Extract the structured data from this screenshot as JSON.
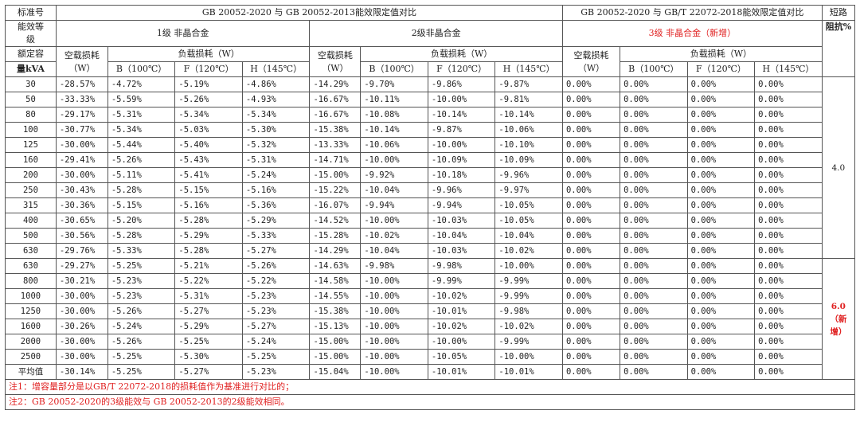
{
  "header": {
    "std_label": "标准号",
    "cmp_left": "GB 20052-2020 与 GB 20052-2013能效限定值对比",
    "cmp_right": "GB 20052-2020 与 GB/T 22072-2018能效限定值对比",
    "short_circuit_1": "短路",
    "short_circuit_2": "阻抗%",
    "grade_label_1": "能效等",
    "grade_label_2": "级",
    "grade1": "1级 非晶合金",
    "grade2": "2级非晶合金",
    "grade3": "3级 非晶合金（新增）",
    "rated_cap_1": "额定容",
    "rated_cap_2": "量kVA",
    "noload_1": "空载损耗",
    "noload_2": "（W）",
    "load_loss": "负载损耗（W）",
    "col_b": "B（100℃）",
    "col_f": "F（120℃）",
    "col_h": "H（145℃）"
  },
  "rows": [
    {
      "cap": "30",
      "g1": [
        "-28.57%",
        "-4.72%",
        "-5.19%",
        "-4.86%"
      ],
      "g2": [
        "-14.29%",
        "-9.70%",
        "-9.86%",
        "-9.87%"
      ],
      "g3": [
        "0.00%",
        "0.00%",
        "0.00%",
        "0.00%"
      ]
    },
    {
      "cap": "50",
      "g1": [
        "-33.33%",
        "-5.59%",
        "-5.26%",
        "-4.93%"
      ],
      "g2": [
        "-16.67%",
        "-10.11%",
        "-10.00%",
        "-9.81%"
      ],
      "g3": [
        "0.00%",
        "0.00%",
        "0.00%",
        "0.00%"
      ]
    },
    {
      "cap": "80",
      "g1": [
        "-29.17%",
        "-5.31%",
        "-5.34%",
        "-5.34%"
      ],
      "g2": [
        "-16.67%",
        "-10.08%",
        "-10.14%",
        "-10.14%"
      ],
      "g3": [
        "0.00%",
        "0.00%",
        "0.00%",
        "0.00%"
      ]
    },
    {
      "cap": "100",
      "g1": [
        "-30.77%",
        "-5.34%",
        "-5.03%",
        "-5.30%"
      ],
      "g2": [
        "-15.38%",
        "-10.14%",
        "-9.87%",
        "-10.06%"
      ],
      "g3": [
        "0.00%",
        "0.00%",
        "0.00%",
        "0.00%"
      ]
    },
    {
      "cap": "125",
      "g1": [
        "-30.00%",
        "-5.44%",
        "-5.40%",
        "-5.32%"
      ],
      "g2": [
        "-13.33%",
        "-10.06%",
        "-10.00%",
        "-10.10%"
      ],
      "g3": [
        "0.00%",
        "0.00%",
        "0.00%",
        "0.00%"
      ]
    },
    {
      "cap": "160",
      "g1": [
        "-29.41%",
        "-5.26%",
        "-5.43%",
        "-5.31%"
      ],
      "g2": [
        "-14.71%",
        "-10.00%",
        "-10.09%",
        "-10.09%"
      ],
      "g3": [
        "0.00%",
        "0.00%",
        "0.00%",
        "0.00%"
      ]
    },
    {
      "cap": "200",
      "g1": [
        "-30.00%",
        "-5.11%",
        "-5.41%",
        "-5.24%"
      ],
      "g2": [
        "-15.00%",
        "-9.92%",
        "-10.18%",
        "-9.96%"
      ],
      "g3": [
        "0.00%",
        "0.00%",
        "0.00%",
        "0.00%"
      ]
    },
    {
      "cap": "250",
      "g1": [
        "-30.43%",
        "-5.28%",
        "-5.15%",
        "-5.16%"
      ],
      "g2": [
        "-15.22%",
        "-10.04%",
        "-9.96%",
        "-9.97%"
      ],
      "g3": [
        "0.00%",
        "0.00%",
        "0.00%",
        "0.00%"
      ]
    },
    {
      "cap": "315",
      "g1": [
        "-30.36%",
        "-5.15%",
        "-5.16%",
        "-5.36%"
      ],
      "g2": [
        "-16.07%",
        "-9.94%",
        "-9.94%",
        "-10.05%"
      ],
      "g3": [
        "0.00%",
        "0.00%",
        "0.00%",
        "0.00%"
      ]
    },
    {
      "cap": "400",
      "g1": [
        "-30.65%",
        "-5.20%",
        "-5.28%",
        "-5.29%"
      ],
      "g2": [
        "-14.52%",
        "-10.00%",
        "-10.03%",
        "-10.05%"
      ],
      "g3": [
        "0.00%",
        "0.00%",
        "0.00%",
        "0.00%"
      ]
    },
    {
      "cap": "500",
      "g1": [
        "-30.56%",
        "-5.28%",
        "-5.29%",
        "-5.33%"
      ],
      "g2": [
        "-15.28%",
        "-10.02%",
        "-10.04%",
        "-10.04%"
      ],
      "g3": [
        "0.00%",
        "0.00%",
        "0.00%",
        "0.00%"
      ]
    },
    {
      "cap": "630",
      "g1": [
        "-29.76%",
        "-5.33%",
        "-5.28%",
        "-5.27%"
      ],
      "g2": [
        "-14.29%",
        "-10.04%",
        "-10.03%",
        "-10.02%"
      ],
      "g3": [
        "0.00%",
        "0.00%",
        "0.00%",
        "0.00%"
      ]
    },
    {
      "cap": "630",
      "g1": [
        "-29.27%",
        "-5.25%",
        "-5.21%",
        "-5.26%"
      ],
      "g2": [
        "-14.63%",
        "-9.98%",
        "-9.98%",
        "-10.00%"
      ],
      "g3": [
        "0.00%",
        "0.00%",
        "0.00%",
        "0.00%"
      ]
    },
    {
      "cap": "800",
      "g1": [
        "-30.21%",
        "-5.23%",
        "-5.22%",
        "-5.22%"
      ],
      "g2": [
        "-14.58%",
        "-10.00%",
        "-9.99%",
        "-9.99%"
      ],
      "g3": [
        "0.00%",
        "0.00%",
        "0.00%",
        "0.00%"
      ]
    },
    {
      "cap": "1000",
      "g1": [
        "-30.00%",
        "-5.23%",
        "-5.31%",
        "-5.23%"
      ],
      "g2": [
        "-14.55%",
        "-10.00%",
        "-10.02%",
        "-9.99%"
      ],
      "g3": [
        "0.00%",
        "0.00%",
        "0.00%",
        "0.00%"
      ]
    },
    {
      "cap": "1250",
      "g1": [
        "-30.00%",
        "-5.26%",
        "-5.27%",
        "-5.23%"
      ],
      "g2": [
        "-15.38%",
        "-10.00%",
        "-10.01%",
        "-9.98%"
      ],
      "g3": [
        "0.00%",
        "0.00%",
        "0.00%",
        "0.00%"
      ]
    },
    {
      "cap": "1600",
      "g1": [
        "-30.26%",
        "-5.24%",
        "-5.29%",
        "-5.27%"
      ],
      "g2": [
        "-15.13%",
        "-10.00%",
        "-10.02%",
        "-10.02%"
      ],
      "g3": [
        "0.00%",
        "0.00%",
        "0.00%",
        "0.00%"
      ]
    },
    {
      "cap": "2000",
      "g1": [
        "-30.00%",
        "-5.26%",
        "-5.25%",
        "-5.24%"
      ],
      "g2": [
        "-15.00%",
        "-10.00%",
        "-10.00%",
        "-9.99%"
      ],
      "g3": [
        "0.00%",
        "0.00%",
        "0.00%",
        "0.00%"
      ]
    },
    {
      "cap": "2500",
      "g1": [
        "-30.00%",
        "-5.25%",
        "-5.30%",
        "-5.25%"
      ],
      "g2": [
        "-15.00%",
        "-10.00%",
        "-10.05%",
        "-10.00%"
      ],
      "g3": [
        "0.00%",
        "0.00%",
        "0.00%",
        "0.00%"
      ]
    },
    {
      "cap": "平均值",
      "g1": [
        "-30.14%",
        "-5.25%",
        "-5.27%",
        "-5.23%"
      ],
      "g2": [
        "-15.04%",
        "-10.00%",
        "-10.01%",
        "-10.01%"
      ],
      "g3": [
        "0.00%",
        "0.00%",
        "0.00%",
        "0.00%"
      ]
    }
  ],
  "impedance": {
    "group1": "4.0",
    "group2_value": "6.0",
    "group2_note_1": "（新",
    "group2_note_2": "增）"
  },
  "notes": [
    "注1：增容量部分是以GB/T 22072-2018的损耗值作为基准进行对比的；",
    "注2：GB 20052-2020的3级能效与 GB 20052-2013的2级能效相同。"
  ],
  "colors": {
    "accent_red": "#e02020",
    "border": "#555555"
  }
}
